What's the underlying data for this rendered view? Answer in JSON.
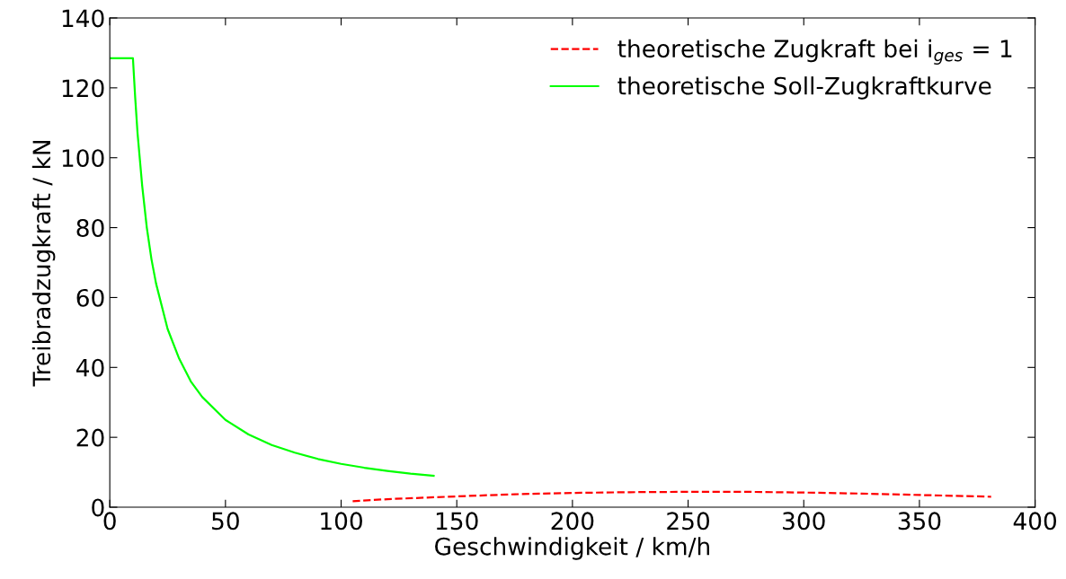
{
  "chart_data": {
    "type": "line",
    "xlabel": "Geschwindigkeit / km/h",
    "ylabel": "Treibradzugkraft / kN",
    "xlim": [
      0,
      400
    ],
    "xticks": [
      0,
      50,
      100,
      150,
      200,
      250,
      300,
      350,
      400
    ],
    "ylim": [
      0,
      140
    ],
    "yticks": [
      0,
      20,
      40,
      60,
      80,
      100,
      120,
      140
    ],
    "grid": false,
    "legend": "top right",
    "series": [
      {
        "name": "theoretische Zugkraft bei i$_{ges}$ = 1",
        "color": "#ff0000",
        "line_style": "dashed",
        "x": [
          105,
          120,
          150,
          175,
          200,
          225,
          250,
          275,
          300,
          325,
          350,
          381
        ],
        "values": [
          1.7,
          2.3,
          3.1,
          3.7,
          4.1,
          4.3,
          4.4,
          4.4,
          4.2,
          3.9,
          3.5,
          3.0
        ]
      },
      {
        "name": "theoretische Soll-Zugkraftkurve",
        "color": "#00ff00",
        "line_style": "solid",
        "x": [
          0,
          10,
          11,
          12,
          14,
          16,
          18,
          20,
          25,
          30,
          35,
          40,
          50,
          60,
          70,
          80,
          90,
          100,
          110,
          120,
          130,
          140
        ],
        "values": [
          128.5,
          128.5,
          117,
          107,
          92,
          80,
          71,
          64,
          51,
          42.5,
          36,
          31.5,
          25,
          20.8,
          17.8,
          15.6,
          13.8,
          12.4,
          11.3,
          10.4,
          9.6,
          9.0
        ]
      }
    ]
  }
}
